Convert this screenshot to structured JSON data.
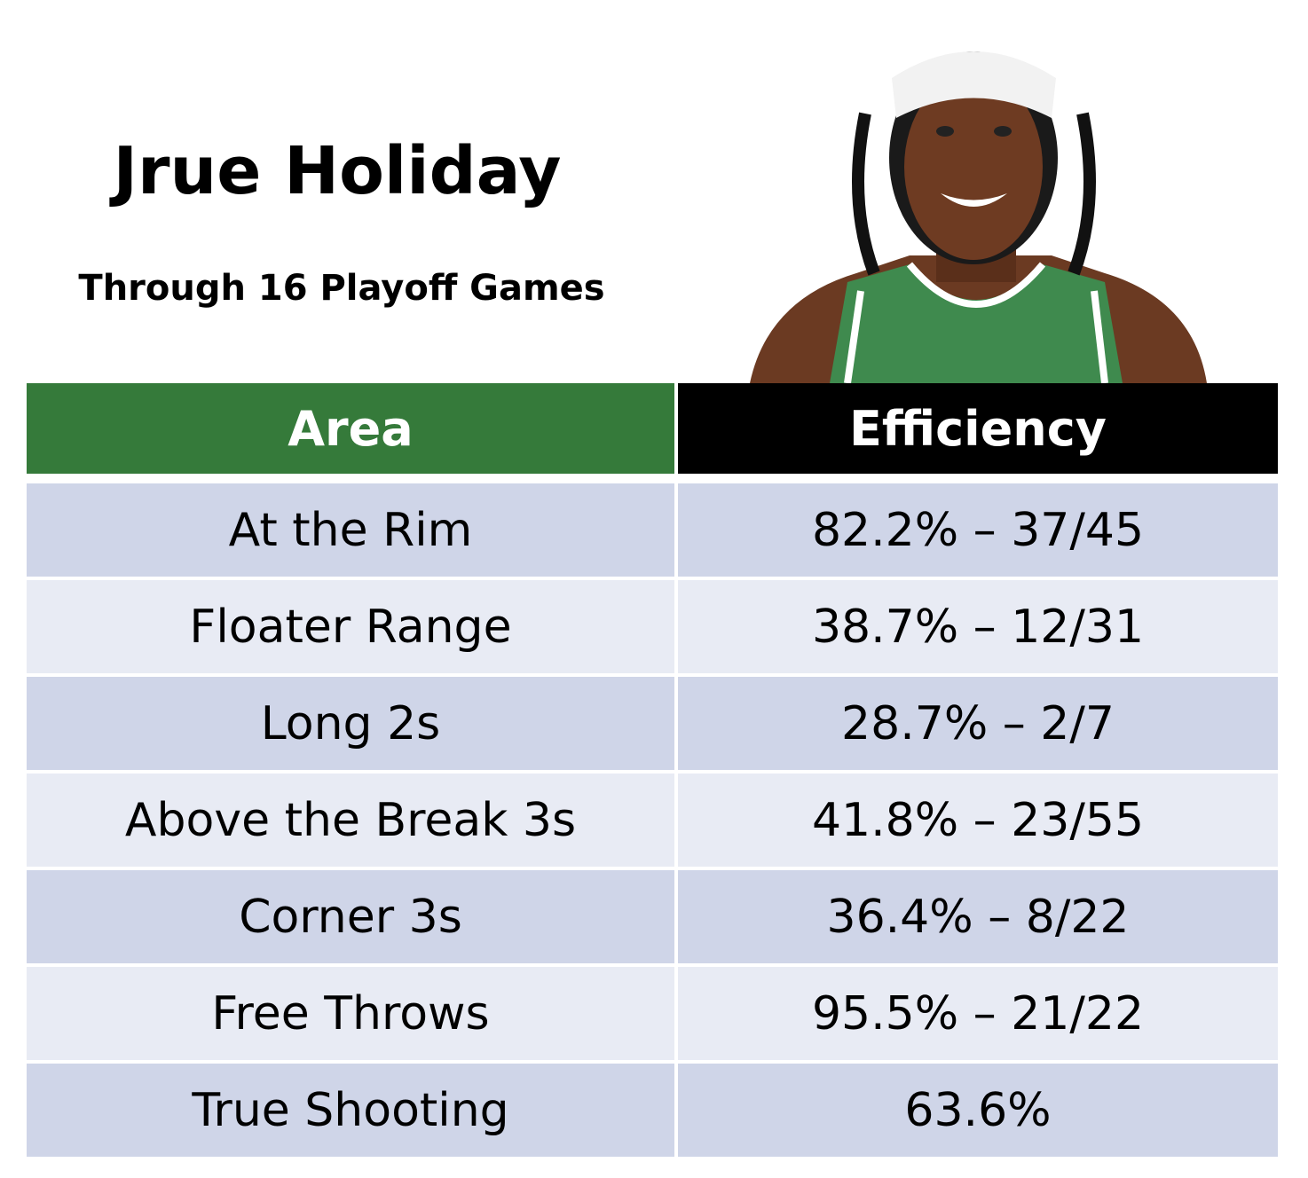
{
  "header": {
    "title": "Jrue Holiday",
    "subtitle": "Through 16 Playoff Games"
  },
  "table": {
    "columns": [
      "Area",
      "Efficiency"
    ],
    "rows": [
      [
        "At the Rim",
        "82.2% – 37/45"
      ],
      [
        "Floater Range",
        "38.7% – 12/31"
      ],
      [
        "Long 2s",
        "28.7% – 2/7"
      ],
      [
        "Above the Break 3s",
        "41.8% – 23/55"
      ],
      [
        "Corner 3s",
        "36.4% – 8/22"
      ],
      [
        "Free Throws",
        "95.5% – 21/22"
      ],
      [
        "True Shooting",
        "63.6%"
      ]
    ]
  }
}
